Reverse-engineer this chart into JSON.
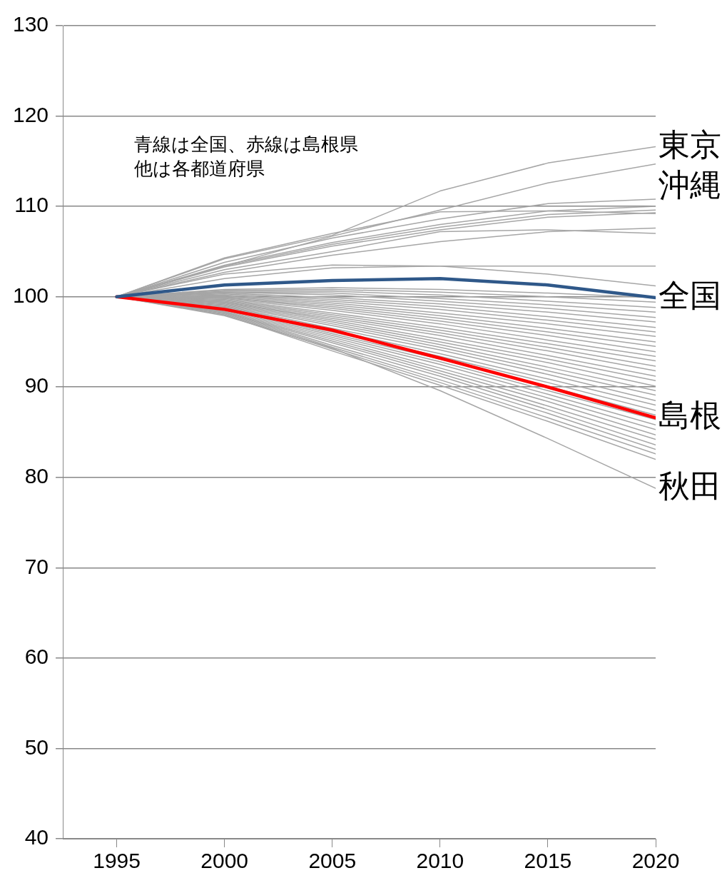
{
  "chart_data": {
    "type": "line",
    "x": [
      1995,
      2000,
      2005,
      2010,
      2015,
      2020
    ],
    "xlim": [
      1992.5,
      2020
    ],
    "xticks": [
      1995,
      2000,
      2005,
      2010,
      2015,
      2020
    ],
    "ylim": [
      40,
      130
    ],
    "yticks": [
      40,
      50,
      60,
      70,
      80,
      90,
      100,
      110,
      120,
      130
    ],
    "grid": "y",
    "legend": false,
    "marker": "none",
    "line_style": "solid",
    "annotations": [
      "青線は全国、赤線は島根県",
      "他は各都道府県"
    ],
    "series": [
      {
        "name": "東京",
        "color": "#a6a6a6",
        "values": [
          100,
          104.2,
          106.8,
          111.7,
          114.8,
          116.6
        ]
      },
      {
        "name": "沖縄",
        "color": "#a6a6a6",
        "values": [
          100,
          103.4,
          106.7,
          109.6,
          112.6,
          114.7
        ]
      },
      {
        "color": "#a6a6a6",
        "values": [
          100,
          103.8,
          106.5,
          108.6,
          110.3,
          110.8
        ]
      },
      {
        "color": "#a6a6a6",
        "values": [
          100,
          103.5,
          106.0,
          108.0,
          109.5,
          110.0
        ]
      },
      {
        "color": "#a6a6a6",
        "values": [
          100,
          103.4,
          105.8,
          107.7,
          109.1,
          109.6
        ]
      },
      {
        "color": "#a6a6a6",
        "values": [
          100,
          103.3,
          105.6,
          107.4,
          108.8,
          109.3
        ]
      },
      {
        "color": "#a6a6a6",
        "values": [
          100,
          104.3,
          107.0,
          109.4,
          109.5,
          109.2
        ]
      },
      {
        "color": "#a6a6a6",
        "values": [
          100,
          102.7,
          104.6,
          106.1,
          107.2,
          107.6
        ]
      },
      {
        "color": "#a6a6a6",
        "values": [
          100,
          103.0,
          105.0,
          107.2,
          107.4,
          107.0
        ]
      },
      {
        "color": "#a6a6a6",
        "values": [
          100,
          102.0,
          103.2,
          103.4,
          103.4,
          103.4
        ]
      },
      {
        "color": "#a6a6a6",
        "values": [
          100,
          102.5,
          103.5,
          103.4,
          102.5,
          101.2
        ]
      },
      {
        "color": "#a6a6a6",
        "values": [
          100,
          100.8,
          101.0,
          100.8,
          100.4,
          99.9
        ]
      },
      {
        "color": "#a6a6a6",
        "values": [
          100,
          100.7,
          100.8,
          100.5,
          100.0,
          99.4
        ]
      },
      {
        "color": "#a6a6a6",
        "values": [
          100,
          100.6,
          100.6,
          100.2,
          99.5,
          98.8
        ]
      },
      {
        "color": "#a6a6a6",
        "values": [
          100,
          100.5,
          100.4,
          99.8,
          99.1,
          98.3
        ]
      },
      {
        "color": "#a6a6a6",
        "values": [
          100,
          100.5,
          100.2,
          99.5,
          98.7,
          97.7
        ]
      },
      {
        "color": "#a6a6a6",
        "values": [
          100,
          100.4,
          99.9,
          99.2,
          98.3,
          97.2
        ]
      },
      {
        "color": "#a6a6a6",
        "values": [
          100,
          100.3,
          99.7,
          98.9,
          97.8,
          96.6
        ]
      },
      {
        "color": "#a6a6a6",
        "values": [
          100,
          100.2,
          99.5,
          98.6,
          97.4,
          96.1
        ]
      },
      {
        "color": "#a6a6a6",
        "values": [
          100,
          100.1,
          99.3,
          98.2,
          97.0,
          95.6
        ]
      },
      {
        "color": "#a6a6a6",
        "values": [
          100,
          100.0,
          99.1,
          97.9,
          96.5,
          95.0
        ]
      },
      {
        "color": "#a6a6a6",
        "values": [
          100,
          99.9,
          98.9,
          97.6,
          96.1,
          94.5
        ]
      },
      {
        "color": "#a6a6a6",
        "values": [
          100,
          99.9,
          98.7,
          97.3,
          95.7,
          93.9
        ]
      },
      {
        "color": "#a6a6a6",
        "values": [
          100,
          99.8,
          98.5,
          97.0,
          95.2,
          93.4
        ]
      },
      {
        "color": "#a6a6a6",
        "values": [
          100,
          99.7,
          98.2,
          96.6,
          94.8,
          92.9
        ]
      },
      {
        "color": "#a6a6a6",
        "values": [
          100,
          99.6,
          98.0,
          96.3,
          94.4,
          92.3
        ]
      },
      {
        "color": "#a6a6a6",
        "values": [
          100,
          99.5,
          97.8,
          96.0,
          94.0,
          91.8
        ]
      },
      {
        "color": "#a6a6a6",
        "values": [
          100,
          99.4,
          97.6,
          95.7,
          93.5,
          91.2
        ]
      },
      {
        "color": "#a6a6a6",
        "values": [
          100,
          99.4,
          97.4,
          95.3,
          93.1,
          90.7
        ]
      },
      {
        "color": "#a6a6a6",
        "values": [
          100,
          99.3,
          97.2,
          95.0,
          92.7,
          90.1
        ]
      },
      {
        "color": "#a6a6a6",
        "values": [
          100,
          99.2,
          97.0,
          94.7,
          92.2,
          89.6
        ]
      },
      {
        "color": "#a6a6a6",
        "values": [
          100,
          99.1,
          96.8,
          94.4,
          91.8,
          89.1
        ]
      },
      {
        "color": "#a6a6a6",
        "values": [
          100,
          99.0,
          96.5,
          94.1,
          91.4,
          88.5
        ]
      },
      {
        "color": "#a6a6a6",
        "values": [
          100,
          98.9,
          96.3,
          93.7,
          90.9,
          88.0
        ]
      },
      {
        "color": "#a6a6a6",
        "values": [
          100,
          98.8,
          96.1,
          93.4,
          90.5,
          87.4
        ]
      },
      {
        "color": "#a6a6a6",
        "values": [
          100,
          98.8,
          95.9,
          93.1,
          90.1,
          86.9
        ]
      },
      {
        "color": "#a6a6a6",
        "values": [
          100,
          98.7,
          95.7,
          92.8,
          89.6,
          86.4
        ]
      },
      {
        "color": "#a6a6a6",
        "values": [
          100,
          98.6,
          95.5,
          92.5,
          89.2,
          85.8
        ]
      },
      {
        "color": "#a6a6a6",
        "values": [
          100,
          98.5,
          95.3,
          92.1,
          88.8,
          85.3
        ]
      },
      {
        "color": "#a6a6a6",
        "values": [
          100,
          98.4,
          95.1,
          91.8,
          88.4,
          84.7
        ]
      },
      {
        "color": "#a6a6a6",
        "values": [
          100,
          98.3,
          94.9,
          91.5,
          87.9,
          84.2
        ]
      },
      {
        "color": "#a6a6a6",
        "values": [
          100,
          98.3,
          94.6,
          91.2,
          87.5,
          83.6
        ]
      },
      {
        "color": "#a6a6a6",
        "values": [
          100,
          98.2,
          94.4,
          90.8,
          87.1,
          83.1
        ]
      },
      {
        "color": "#a6a6a6",
        "values": [
          100,
          98.1,
          94.2,
          90.5,
          86.6,
          82.6
        ]
      },
      {
        "color": "#a6a6a6",
        "values": [
          100,
          98.0,
          94.0,
          90.2,
          86.2,
          82.0
        ]
      },
      {
        "name": "秋田",
        "color": "#a6a6a6",
        "values": [
          100,
          97.9,
          94.3,
          89.6,
          84.3,
          78.8
        ]
      },
      {
        "name": "全国",
        "color": "#2f5889",
        "values": [
          100,
          101.3,
          101.8,
          102.0,
          101.3,
          99.9
        ]
      },
      {
        "name": "島根",
        "color": "#ff0000",
        "values": [
          100,
          98.6,
          96.3,
          93.2,
          90.0,
          86.6
        ]
      }
    ]
  }
}
